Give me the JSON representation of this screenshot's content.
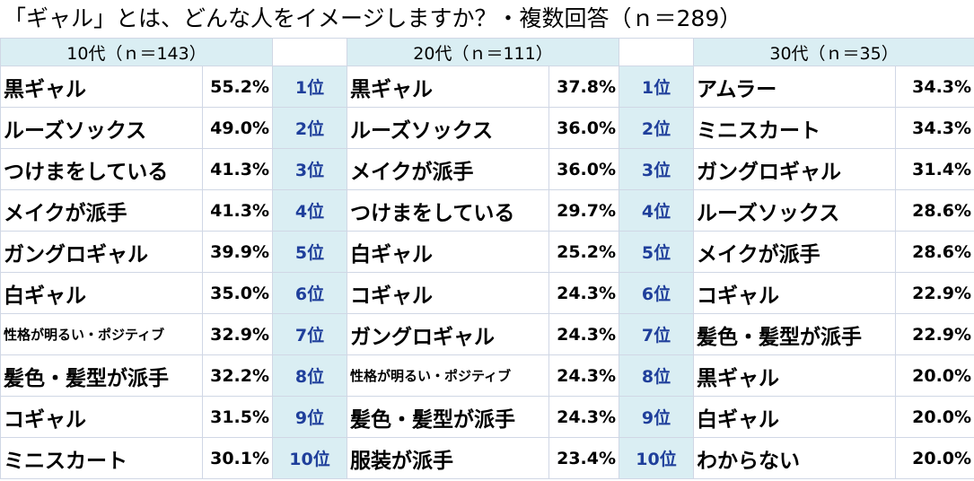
{
  "title": "「ギャル」とは、どんな人をイメージしますか？・複数回答（ｎ＝289）",
  "headers": [
    "10代（ｎ＝143）",
    "20代（ｎ＝111）",
    "30代（ｎ＝35）"
  ],
  "ranks": [
    "1位",
    "2位",
    "3位",
    "4位",
    "5位",
    "6位",
    "7位",
    "8位",
    "9位",
    "10位"
  ],
  "teens": [
    {
      "item": "黒ギャル",
      "pct": "55.2%"
    },
    {
      "item": "ルーズソックス",
      "pct": "49.0%"
    },
    {
      "item": "つけまをしている",
      "pct": "41.3%"
    },
    {
      "item": "メイクが派手",
      "pct": "41.3%"
    },
    {
      "item": "ガングロギャル",
      "pct": "39.9%"
    },
    {
      "item": "白ギャル",
      "pct": "35.0%"
    },
    {
      "item": "性格が明るい・ポジティブ",
      "pct": "32.9%"
    },
    {
      "item": "髪色・髪型が派手",
      "pct": "32.2%"
    },
    {
      "item": "コギャル",
      "pct": "31.5%"
    },
    {
      "item": "ミニスカート",
      "pct": "30.1%"
    }
  ],
  "twenties": [
    {
      "item": "黒ギャル",
      "pct": "37.8%"
    },
    {
      "item": "ルーズソックス",
      "pct": "36.0%"
    },
    {
      "item": "メイクが派手",
      "pct": "36.0%"
    },
    {
      "item": "つけまをしている",
      "pct": "29.7%"
    },
    {
      "item": "白ギャル",
      "pct": "25.2%"
    },
    {
      "item": "コギャル",
      "pct": "24.3%"
    },
    {
      "item": "ガングロギャル",
      "pct": "24.3%"
    },
    {
      "item": "性格が明るい・ポジティブ",
      "pct": "24.3%"
    },
    {
      "item": "髪色・髪型が派手",
      "pct": "24.3%"
    },
    {
      "item": "服装が派手",
      "pct": "23.4%"
    }
  ],
  "thirties": [
    {
      "item": "アムラー",
      "pct": "34.3%"
    },
    {
      "item": "ミニスカート",
      "pct": "34.3%"
    },
    {
      "item": "ガングロギャル",
      "pct": "31.4%"
    },
    {
      "item": "ルーズソックス",
      "pct": "28.6%"
    },
    {
      "item": "メイクが派手",
      "pct": "28.6%"
    },
    {
      "item": "コギャル",
      "pct": "22.9%"
    },
    {
      "item": "髪色・髪型が派手",
      "pct": "22.9%"
    },
    {
      "item": "黒ギャル",
      "pct": "20.0%"
    },
    {
      "item": "白ギャル",
      "pct": "20.0%"
    },
    {
      "item": "わからない",
      "pct": "20.0%"
    }
  ]
}
